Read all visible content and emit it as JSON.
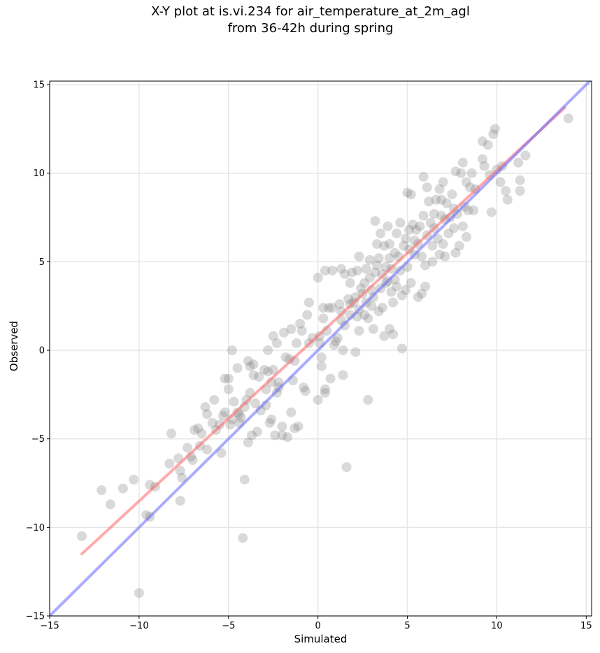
{
  "chart_data": {
    "type": "scatter",
    "title": [
      "X-Y plot at is.vi.234 for air_temperature_at_2m_agl",
      "from 36-42h during spring"
    ],
    "xlabel": "Simulated",
    "ylabel": "Observed",
    "xlim": [
      -15,
      15.3
    ],
    "ylim": [
      -15,
      15.2
    ],
    "xticks": [
      -15,
      -10,
      -5,
      0,
      5,
      10,
      15
    ],
    "yticks": [
      -15,
      -10,
      -5,
      0,
      5,
      10,
      15
    ],
    "xtick_labels": [
      "−15",
      "−10",
      "−5",
      "0",
      "5",
      "10",
      "15"
    ],
    "ytick_labels": [
      "−15",
      "−10",
      "−5",
      "0",
      "5",
      "10",
      "15"
    ],
    "grid": true,
    "colors": {
      "points": "#808080",
      "fit_line": "#ff6666",
      "one_to_one_line": "#6666ff"
    },
    "lines": {
      "fit": {
        "x": [
          -13.2,
          13.8
        ],
        "y": [
          -11.5,
          13.7
        ]
      },
      "one_to_one": {
        "x": [
          -15,
          15.3
        ],
        "y": [
          -15,
          15.3
        ]
      }
    },
    "points": [
      [
        -13.2,
        -10.5
      ],
      [
        -12.1,
        -7.9
      ],
      [
        -11.6,
        -8.7
      ],
      [
        -10.9,
        -7.8
      ],
      [
        -10.0,
        -13.7
      ],
      [
        -10.3,
        -7.3
      ],
      [
        -9.6,
        -9.3
      ],
      [
        -9.4,
        -9.4
      ],
      [
        -9.4,
        -7.6
      ],
      [
        -9.1,
        -7.7
      ],
      [
        -8.2,
        -4.7
      ],
      [
        -8.3,
        -6.4
      ],
      [
        -7.8,
        -6.1
      ],
      [
        -7.7,
        -6.8
      ],
      [
        -7.6,
        -7.2
      ],
      [
        -7.7,
        -8.5
      ],
      [
        -7.3,
        -5.5
      ],
      [
        -7.1,
        -6.0
      ],
      [
        -7.0,
        -6.2
      ],
      [
        -6.9,
        -4.5
      ],
      [
        -6.7,
        -4.4
      ],
      [
        -6.6,
        -5.4
      ],
      [
        -6.5,
        -4.7
      ],
      [
        -6.3,
        -3.2
      ],
      [
        -6.2,
        -5.6
      ],
      [
        -6.2,
        -3.6
      ],
      [
        -5.9,
        -4.1
      ],
      [
        -5.8,
        -2.8
      ],
      [
        -5.7,
        -4.5
      ],
      [
        -5.5,
        -4.2
      ],
      [
        -5.4,
        -5.8
      ],
      [
        -5.3,
        -3.7
      ],
      [
        -5.2,
        -3.5
      ],
      [
        -5.2,
        -1.6
      ],
      [
        -5.0,
        -1.6
      ],
      [
        -5.0,
        -2.2
      ],
      [
        -4.9,
        -4.2
      ],
      [
        -4.8,
        -3.9
      ],
      [
        -4.8,
        0.0
      ],
      [
        -4.7,
        -2.9
      ],
      [
        -4.5,
        -1.0
      ],
      [
        -4.5,
        -3.5
      ],
      [
        -4.4,
        -3.6
      ],
      [
        -4.4,
        -4.1
      ],
      [
        -4.3,
        -3.8
      ],
      [
        -4.2,
        -10.6
      ],
      [
        -4.1,
        -7.3
      ],
      [
        -4.1,
        -3.2
      ],
      [
        -4.0,
        -2.8
      ],
      [
        -3.9,
        -0.6
      ],
      [
        -3.9,
        -5.2
      ],
      [
        -3.8,
        -2.4
      ],
      [
        -3.8,
        -0.9
      ],
      [
        -3.7,
        -4.8
      ],
      [
        -3.6,
        -1.4
      ],
      [
        -3.6,
        -0.8
      ],
      [
        -3.5,
        -3.0
      ],
      [
        -3.4,
        -4.6
      ],
      [
        -3.3,
        -1.5
      ],
      [
        -3.2,
        -3.4
      ],
      [
        -3.0,
        -1.1
      ],
      [
        -2.9,
        -2.2
      ],
      [
        -2.9,
        -3.1
      ],
      [
        -2.8,
        0.0
      ],
      [
        -2.8,
        -1.2
      ],
      [
        -2.7,
        -4.1
      ],
      [
        -2.6,
        -1.8
      ],
      [
        -2.6,
        -3.9
      ],
      [
        -2.5,
        0.8
      ],
      [
        -2.5,
        -1.1
      ],
      [
        -2.4,
        -4.8
      ],
      [
        -2.3,
        0.4
      ],
      [
        -2.3,
        -2.4
      ],
      [
        -2.2,
        -2.1
      ],
      [
        -2.2,
        -1.8
      ],
      [
        -2.0,
        -4.3
      ],
      [
        -2.0,
        -4.8
      ],
      [
        -1.9,
        1.0
      ],
      [
        -1.8,
        -0.4
      ],
      [
        -1.7,
        -4.9
      ],
      [
        -1.6,
        -0.5
      ],
      [
        -1.5,
        -3.5
      ],
      [
        -1.5,
        1.2
      ],
      [
        -1.4,
        -1.7
      ],
      [
        -1.3,
        -4.4
      ],
      [
        -1.3,
        -0.6
      ],
      [
        -1.2,
        0.4
      ],
      [
        -1.1,
        -4.3
      ],
      [
        -1.0,
        1.5
      ],
      [
        -0.9,
        1.1
      ],
      [
        -0.8,
        -2.1
      ],
      [
        -0.7,
        -2.3
      ],
      [
        -0.6,
        2.0
      ],
      [
        -0.5,
        2.7
      ],
      [
        -0.5,
        0.4
      ],
      [
        -0.3,
        0.7
      ],
      [
        0.0,
        -2.8
      ],
      [
        0.0,
        4.1
      ],
      [
        0.1,
        0.8
      ],
      [
        0.1,
        0.4
      ],
      [
        0.2,
        -0.4
      ],
      [
        0.2,
        -0.9
      ],
      [
        0.3,
        1.8
      ],
      [
        0.3,
        2.4
      ],
      [
        0.4,
        4.5
      ],
      [
        0.4,
        -2.2
      ],
      [
        0.4,
        -2.4
      ],
      [
        0.5,
        1.1
      ],
      [
        0.6,
        2.4
      ],
      [
        0.7,
        -1.6
      ],
      [
        0.8,
        4.5
      ],
      [
        0.8,
        2.4
      ],
      [
        0.9,
        0.3
      ],
      [
        1.0,
        0.5
      ],
      [
        1.1,
        0.7
      ],
      [
        1.2,
        2.6
      ],
      [
        1.3,
        4.6
      ],
      [
        1.3,
        2.2
      ],
      [
        1.3,
        1.7
      ],
      [
        1.4,
        -1.4
      ],
      [
        1.4,
        0.0
      ],
      [
        1.5,
        4.3
      ],
      [
        1.5,
        1.4
      ],
      [
        1.6,
        -6.6
      ],
      [
        1.7,
        2.9
      ],
      [
        1.8,
        2.0
      ],
      [
        1.8,
        3.8
      ],
      [
        1.8,
        2.6
      ],
      [
        1.9,
        4.4
      ],
      [
        2.0,
        2.7
      ],
      [
        2.1,
        -0.1
      ],
      [
        2.1,
        3.0
      ],
      [
        2.2,
        4.5
      ],
      [
        2.2,
        1.9
      ],
      [
        2.3,
        2.3
      ],
      [
        2.3,
        5.3
      ],
      [
        2.3,
        1.1
      ],
      [
        2.4,
        3.5
      ],
      [
        2.5,
        3.2
      ],
      [
        2.6,
        3.8
      ],
      [
        2.6,
        2.0
      ],
      [
        2.7,
        2.7
      ],
      [
        2.7,
        4.6
      ],
      [
        2.8,
        -2.8
      ],
      [
        2.8,
        1.8
      ],
      [
        2.9,
        4.1
      ],
      [
        2.9,
        5.1
      ],
      [
        3.0,
        3.4
      ],
      [
        3.0,
        2.5
      ],
      [
        3.1,
        3.0
      ],
      [
        3.1,
        1.2
      ],
      [
        3.2,
        4.4
      ],
      [
        3.2,
        7.3
      ],
      [
        3.3,
        6.0
      ],
      [
        3.3,
        4.8
      ],
      [
        3.4,
        2.2
      ],
      [
        3.4,
        5.2
      ],
      [
        3.5,
        3.5
      ],
      [
        3.5,
        6.6
      ],
      [
        3.6,
        4.3
      ],
      [
        3.6,
        2.4
      ],
      [
        3.7,
        5.9
      ],
      [
        3.7,
        0.8
      ],
      [
        3.8,
        3.8
      ],
      [
        3.8,
        4.7
      ],
      [
        3.9,
        7.0
      ],
      [
        3.9,
        3.9
      ],
      [
        4.0,
        5.2
      ],
      [
        4.0,
        6.0
      ],
      [
        4.0,
        1.2
      ],
      [
        4.1,
        3.3
      ],
      [
        4.1,
        4.6
      ],
      [
        4.2,
        2.7
      ],
      [
        4.2,
        0.9
      ],
      [
        4.3,
        5.5
      ],
      [
        4.3,
        4.0
      ],
      [
        4.4,
        6.6
      ],
      [
        4.4,
        3.6
      ],
      [
        4.5,
        5.3
      ],
      [
        4.6,
        7.2
      ],
      [
        4.6,
        4.5
      ],
      [
        4.7,
        0.1
      ],
      [
        4.7,
        3.1
      ],
      [
        4.8,
        5.9
      ],
      [
        4.9,
        6.3
      ],
      [
        4.9,
        3.4
      ],
      [
        5.0,
        4.7
      ],
      [
        5.0,
        8.9
      ],
      [
        5.1,
        6.8
      ],
      [
        5.1,
        5.7
      ],
      [
        5.2,
        8.8
      ],
      [
        5.2,
        3.8
      ],
      [
        5.3,
        7.1
      ],
      [
        5.4,
        6.2
      ],
      [
        5.4,
        5.4
      ],
      [
        5.5,
        6.8
      ],
      [
        5.6,
        3.0
      ],
      [
        5.6,
        6.0
      ],
      [
        5.7,
        7.0
      ],
      [
        5.8,
        3.2
      ],
      [
        5.8,
        5.3
      ],
      [
        5.9,
        9.8
      ],
      [
        5.9,
        7.6
      ],
      [
        6.0,
        4.8
      ],
      [
        6.0,
        3.6
      ],
      [
        6.1,
        9.2
      ],
      [
        6.1,
        6.5
      ],
      [
        6.2,
        8.4
      ],
      [
        6.3,
        7.2
      ],
      [
        6.4,
        5.9
      ],
      [
        6.4,
        5.0
      ],
      [
        6.5,
        6.9
      ],
      [
        6.5,
        7.7
      ],
      [
        6.6,
        8.5
      ],
      [
        6.7,
        6.3
      ],
      [
        6.8,
        5.4
      ],
      [
        6.8,
        9.1
      ],
      [
        6.9,
        7.6
      ],
      [
        6.9,
        8.5
      ],
      [
        7.0,
        9.5
      ],
      [
        7.0,
        6.0
      ],
      [
        7.1,
        7.4
      ],
      [
        7.1,
        5.3
      ],
      [
        7.2,
        8.3
      ],
      [
        7.3,
        6.6
      ],
      [
        7.4,
        7.5
      ],
      [
        7.5,
        8.8
      ],
      [
        7.6,
        6.9
      ],
      [
        7.6,
        8.0
      ],
      [
        7.7,
        10.1
      ],
      [
        7.7,
        5.5
      ],
      [
        7.8,
        7.7
      ],
      [
        7.9,
        5.9
      ],
      [
        8.0,
        10.0
      ],
      [
        8.1,
        7.0
      ],
      [
        8.1,
        10.6
      ],
      [
        8.2,
        8.1
      ],
      [
        8.3,
        9.5
      ],
      [
        8.3,
        6.4
      ],
      [
        8.4,
        7.9
      ],
      [
        8.5,
        9.2
      ],
      [
        8.6,
        10.0
      ],
      [
        8.7,
        7.9
      ],
      [
        8.8,
        9.1
      ],
      [
        9.2,
        11.8
      ],
      [
        9.2,
        10.8
      ],
      [
        9.3,
        10.4
      ],
      [
        9.5,
        11.6
      ],
      [
        9.6,
        9.9
      ],
      [
        9.7,
        7.8
      ],
      [
        9.8,
        12.2
      ],
      [
        9.9,
        12.5
      ],
      [
        10.0,
        10.2
      ],
      [
        10.2,
        9.5
      ],
      [
        10.3,
        10.4
      ],
      [
        10.5,
        9.0
      ],
      [
        10.6,
        8.5
      ],
      [
        11.2,
        10.6
      ],
      [
        11.3,
        9.6
      ],
      [
        11.3,
        9.0
      ],
      [
        11.6,
        11.0
      ],
      [
        14.0,
        13.1
      ]
    ]
  }
}
